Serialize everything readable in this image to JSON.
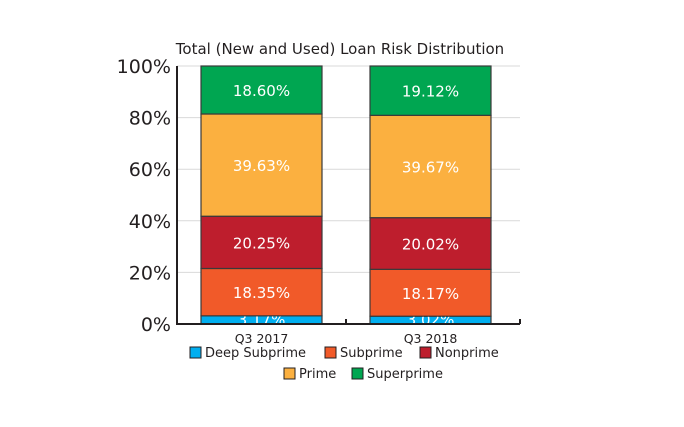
{
  "chart_data": {
    "type": "bar",
    "stacked": true,
    "title": "Total (New and Used) Loan Risk Distribution",
    "xlabel": "",
    "ylabel": "",
    "ylim": [
      0,
      100
    ],
    "yticks": [
      "0%",
      "20%",
      "40%",
      "60%",
      "80%",
      "100%"
    ],
    "ytick_values": [
      0,
      20,
      40,
      60,
      80,
      100
    ],
    "grid": true,
    "categories": [
      "Q3 2017",
      "Q3 2018"
    ],
    "series": [
      {
        "name": "Deep Subprime",
        "color": "#00aeef",
        "values": [
          3.17,
          3.02
        ],
        "labels": [
          "3.17%",
          "3.02%"
        ]
      },
      {
        "name": "Subprime",
        "color": "#f15a29",
        "values": [
          18.35,
          18.17
        ],
        "labels": [
          "18.35%",
          "18.17%"
        ]
      },
      {
        "name": "Nonprime",
        "color": "#be1e2d",
        "values": [
          20.25,
          20.02
        ],
        "labels": [
          "20.25%",
          "20.02%"
        ]
      },
      {
        "name": "Prime",
        "color": "#fbb040",
        "values": [
          39.63,
          39.67
        ],
        "labels": [
          "39.63%",
          "39.67%"
        ]
      },
      {
        "name": "Superprime",
        "color": "#00a651",
        "values": [
          18.6,
          19.12
        ],
        "labels": [
          "18.60%",
          "19.12%"
        ]
      }
    ],
    "legend_position": "bottom"
  }
}
